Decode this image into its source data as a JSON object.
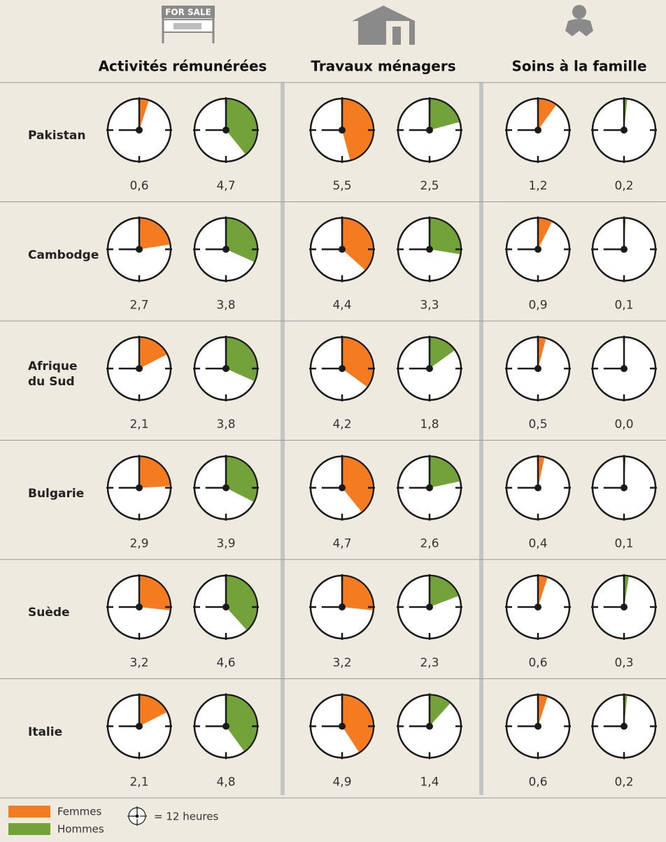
{
  "icons": {
    "sale_sign": "FOR SALE"
  },
  "chart_data": {
    "type": "clock",
    "groups": [
      "Activités rémunérées",
      "Travaux ménagers",
      "Soins à la famille"
    ],
    "categories": [
      "Pakistan",
      "Cambodge",
      "Afrique\ndu Sud",
      "Bulgarie",
      "Suède",
      "Italie"
    ],
    "clock_max": 12,
    "clock_label": "= 12 heures",
    "series": [
      {
        "name": "Femmes",
        "color": "#f47b20",
        "values": [
          [
            0.6,
            5.5,
            1.2
          ],
          [
            2.7,
            4.4,
            0.9
          ],
          [
            2.1,
            4.2,
            0.5
          ],
          [
            2.9,
            4.7,
            0.4
          ],
          [
            3.2,
            3.2,
            0.6
          ],
          [
            2.1,
            4.9,
            0.6
          ]
        ],
        "value_labels": [
          [
            "0,6",
            "5,5",
            "1,2"
          ],
          [
            "2,7",
            "4,4",
            "0,9"
          ],
          [
            "2,1",
            "4,2",
            "0,5"
          ],
          [
            "2,9",
            "4,7",
            "0,4"
          ],
          [
            "3,2",
            "3,2",
            "0,6"
          ],
          [
            "2,1",
            "4,9",
            "0,6"
          ]
        ]
      },
      {
        "name": "Hommes",
        "color": "#74a23a",
        "values": [
          [
            4.7,
            2.5,
            0.2
          ],
          [
            3.8,
            3.3,
            0.1
          ],
          [
            3.8,
            1.8,
            0.0
          ],
          [
            3.9,
            2.6,
            0.1
          ],
          [
            4.6,
            2.3,
            0.3
          ],
          [
            4.8,
            1.4,
            0.2
          ]
        ],
        "value_labels": [
          [
            "4,7",
            "2,5",
            "0,2"
          ],
          [
            "3,8",
            "3,3",
            "0,1"
          ],
          [
            "3,8",
            "1,8",
            "0,0"
          ],
          [
            "3,9",
            "2,6",
            "0,1"
          ],
          [
            "4,6",
            "2,3",
            "0,3"
          ],
          [
            "4,8",
            "1,4",
            "0,2"
          ]
        ]
      }
    ]
  }
}
